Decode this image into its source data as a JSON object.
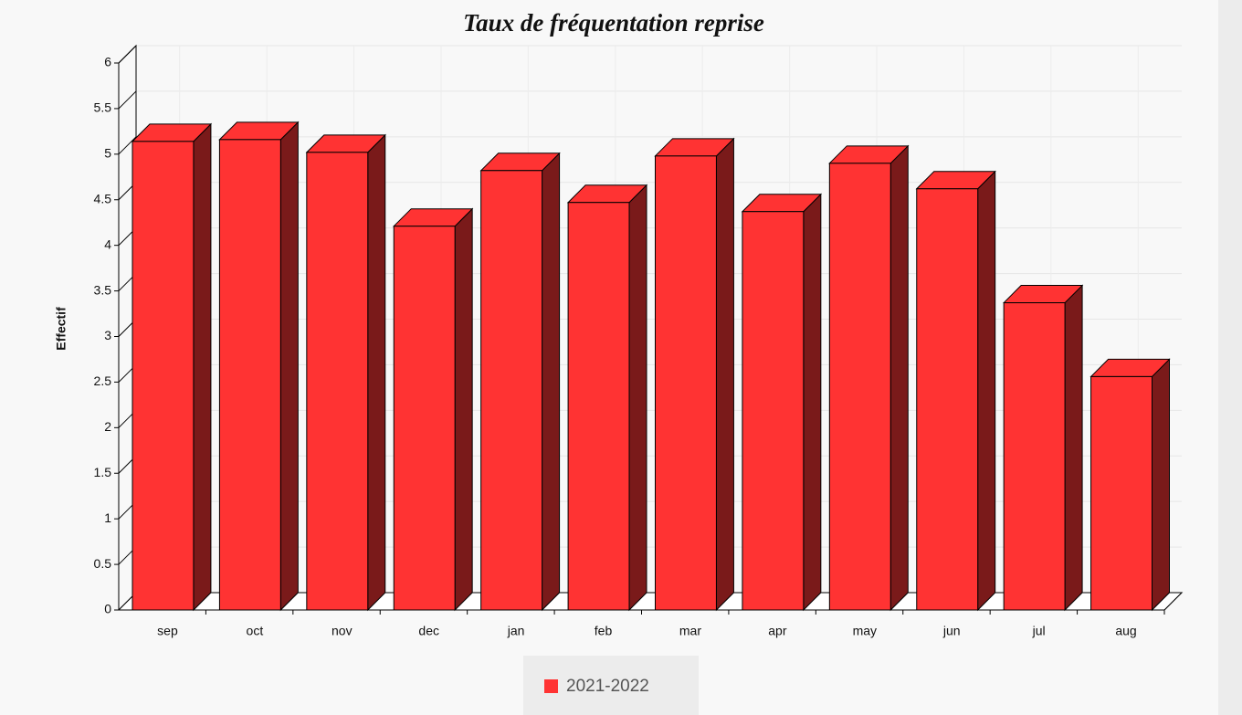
{
  "chart_data": {
    "type": "bar3d",
    "title": "Taux de fréquentation reprise",
    "y_label": "Effectif",
    "categories": [
      "sep",
      "oct",
      "nov",
      "dec",
      "jan",
      "feb",
      "mar",
      "apr",
      "may",
      "jun",
      "jul",
      "aug"
    ],
    "series": [
      {
        "name": "2021-2022",
        "color": "#ff3333",
        "values": [
          5.14,
          5.16,
          5.02,
          4.21,
          4.82,
          4.47,
          4.98,
          4.37,
          4.9,
          4.62,
          3.37,
          2.56
        ]
      }
    ],
    "ylim": [
      0,
      6
    ],
    "yticks": [
      0,
      0.5,
      1,
      1.5,
      2,
      2.5,
      3,
      3.5,
      4,
      4.5,
      5,
      5.5,
      6
    ],
    "grid": true
  }
}
